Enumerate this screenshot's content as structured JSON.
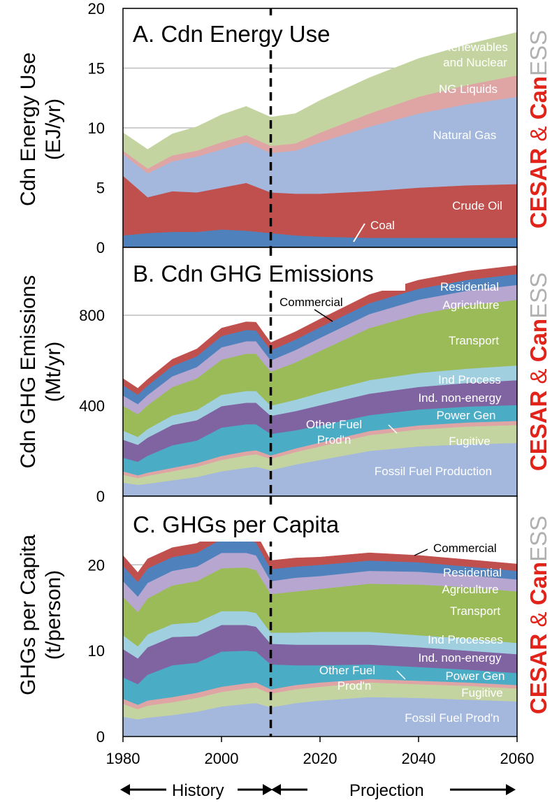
{
  "colors": {
    "coal": "#4f81bd",
    "crude": "#c0504d",
    "natgas": "#a3b8dc",
    "ngl": "#dfa5a4",
    "renew": "#c4d4a0",
    "ffprod": "#a3b8dc",
    "fugitive": "#c4d4a0",
    "otherfuel": "#dfa5a4",
    "powergen": "#4bacc6",
    "indnon": "#8064a2",
    "indproc": "#a0d0e0",
    "transport": "#9bbb59",
    "agri": "#b7a6cf",
    "resid": "#4f81bd",
    "comm": "#c0504d",
    "logo_red": "#e2231a",
    "logo_grey": "#b0b0b0"
  },
  "logo": {
    "cesar": "CESAR",
    "amp": "&",
    "can": "Can",
    "ess": "ESS"
  },
  "footer": {
    "history": "History",
    "projection": "Projection"
  },
  "chart_data": [
    {
      "type": "area",
      "title": "A. Cdn Energy Use",
      "ylabel_line1": "Cdn Energy Use",
      "ylabel_line2": "(EJ/yr)",
      "ylim": [
        0,
        20
      ],
      "yticks": [
        0,
        5,
        10,
        15,
        20
      ],
      "grid": true,
      "x": [
        1980,
        1985,
        1990,
        1995,
        2000,
        2005,
        2010,
        2015,
        2020,
        2030,
        2040,
        2050,
        2060
      ],
      "series": [
        {
          "name": "Coal",
          "key": "coal",
          "values": [
            1.0,
            1.2,
            1.3,
            1.3,
            1.5,
            1.4,
            1.2,
            1.0,
            0.9,
            0.8,
            0.8,
            0.8,
            0.8
          ]
        },
        {
          "name": "Crude Oil",
          "key": "crude",
          "values": [
            5.0,
            3.0,
            3.4,
            3.3,
            3.5,
            4.0,
            3.4,
            3.5,
            3.6,
            3.9,
            4.2,
            4.4,
            4.5
          ]
        },
        {
          "name": "Natural Gas",
          "key": "natgas",
          "values": [
            1.8,
            2.0,
            2.5,
            3.0,
            3.2,
            3.4,
            3.3,
            3.6,
            4.3,
            5.4,
            6.2,
            6.8,
            7.3
          ]
        },
        {
          "name": "NG Liquids",
          "key": "ngl",
          "values": [
            0.3,
            0.4,
            0.5,
            0.5,
            0.6,
            0.6,
            0.6,
            0.6,
            0.8,
            1.1,
            1.4,
            1.6,
            1.8
          ]
        },
        {
          "name": "Renewables and Nuclear",
          "key": "renew",
          "values": [
            1.5,
            1.6,
            1.8,
            2.0,
            2.3,
            2.4,
            2.4,
            2.5,
            2.7,
            3.0,
            3.2,
            3.4,
            3.6
          ]
        }
      ],
      "labels": [
        "Renewables",
        "and Nuclear",
        "NG Liquids",
        "Natural Gas",
        "Crude Oil",
        "Coal"
      ]
    },
    {
      "type": "area",
      "title": "B. Cdn GHG Emissions",
      "ylabel_line1": "Cdn GHG Emissions",
      "ylabel_line2": "(Mt/yr)",
      "ylim": [
        0,
        1100
      ],
      "yticks": [
        0,
        400,
        800
      ],
      "grid": true,
      "x": [
        1980,
        1983,
        1985,
        1990,
        1995,
        2000,
        2005,
        2007,
        2010,
        2015,
        2020,
        2030,
        2040,
        2050,
        2060
      ],
      "series": [
        {
          "name": "Fossil Fuel Production",
          "key": "ffprod",
          "values": [
            60,
            50,
            55,
            70,
            85,
            110,
            125,
            130,
            115,
            140,
            160,
            200,
            220,
            230,
            235
          ]
        },
        {
          "name": "Fugitive",
          "key": "fugitive",
          "values": [
            35,
            30,
            35,
            40,
            45,
            50,
            55,
            55,
            50,
            55,
            60,
            70,
            75,
            78,
            80
          ]
        },
        {
          "name": "Other Fuel Prod'n",
          "key": "otherfuel",
          "values": [
            15,
            12,
            14,
            15,
            16,
            18,
            18,
            18,
            15,
            16,
            17,
            18,
            18,
            18,
            18
          ]
        },
        {
          "name": "Power Gen",
          "key": "powergen",
          "values": [
            60,
            60,
            75,
            100,
            100,
            125,
            120,
            115,
            95,
            80,
            75,
            70,
            70,
            70,
            70
          ]
        },
        {
          "name": "Ind. non-energy",
          "key": "indnon",
          "values": [
            80,
            75,
            80,
            90,
            90,
            95,
            95,
            95,
            80,
            85,
            90,
            95,
            100,
            105,
            110
          ]
        },
        {
          "name": "Ind Process",
          "key": "indproc",
          "values": [
            40,
            35,
            38,
            42,
            45,
            50,
            52,
            52,
            45,
            50,
            55,
            60,
            62,
            63,
            65
          ]
        },
        {
          "name": "Transport",
          "key": "transport",
          "values": [
            110,
            100,
            105,
            125,
            140,
            155,
            165,
            165,
            150,
            165,
            185,
            230,
            260,
            280,
            290
          ]
        },
        {
          "name": "Agriculture",
          "key": "agri",
          "values": [
            45,
            45,
            45,
            48,
            50,
            55,
            55,
            55,
            50,
            55,
            58,
            62,
            64,
            65,
            66
          ]
        },
        {
          "name": "Residential",
          "key": "resid",
          "values": [
            45,
            42,
            42,
            45,
            48,
            50,
            50,
            48,
            45,
            46,
            47,
            48,
            48,
            48,
            48
          ]
        },
        {
          "name": "Commercial",
          "key": "comm",
          "values": [
            30,
            28,
            28,
            30,
            32,
            35,
            36,
            36,
            34,
            35,
            36,
            38,
            38,
            38,
            38
          ]
        }
      ],
      "labels": [
        "Residential",
        "Agriculture",
        "Commercial",
        "Transport",
        "Ind Process",
        "Ind. non-energy",
        "Power Gen",
        "Other Fuel",
        "Prod'n",
        "Fugitive",
        "Fossil Fuel Production"
      ]
    },
    {
      "type": "area",
      "title": "C.  GHGs per Capita",
      "ylabel_line1": "GHGs per Capita",
      "ylabel_line2": "(t/person)",
      "ylim": [
        0,
        28
      ],
      "yticks": [
        0,
        10,
        20
      ],
      "grid": true,
      "x": [
        1980,
        1983,
        1985,
        1990,
        1995,
        2000,
        2005,
        2007,
        2010,
        2015,
        2020,
        2030,
        2040,
        2050,
        2060
      ],
      "series": [
        {
          "name": "Fossil Fuel Prod'n",
          "key": "ffprod",
          "values": [
            2.3,
            2.0,
            2.2,
            2.5,
            2.9,
            3.5,
            3.8,
            3.9,
            3.4,
            3.9,
            4.2,
            4.6,
            4.5,
            4.3,
            4.1
          ]
        },
        {
          "name": "Fugitive",
          "key": "fugitive",
          "values": [
            1.5,
            1.2,
            1.4,
            1.5,
            1.6,
            1.7,
            1.8,
            1.8,
            1.6,
            1.6,
            1.6,
            1.7,
            1.6,
            1.6,
            1.5
          ]
        },
        {
          "name": "Other Fuel Prod'n",
          "key": "otherfuel",
          "values": [
            0.6,
            0.5,
            0.6,
            0.6,
            0.6,
            0.6,
            0.6,
            0.6,
            0.5,
            0.5,
            0.5,
            0.4,
            0.4,
            0.4,
            0.4
          ]
        },
        {
          "name": "Power Gen",
          "key": "powergen",
          "values": [
            2.5,
            2.4,
            3.0,
            3.7,
            3.5,
            4.1,
            3.8,
            3.6,
            2.9,
            2.3,
            2.0,
            1.7,
            1.6,
            1.5,
            1.4
          ]
        },
        {
          "name": "Ind. non-energy",
          "key": "indnon",
          "values": [
            3.3,
            3.0,
            3.2,
            3.3,
            3.1,
            3.1,
            3.0,
            2.9,
            2.4,
            2.4,
            2.4,
            2.3,
            2.3,
            2.2,
            2.2
          ]
        },
        {
          "name": "Ind Processes",
          "key": "indproc",
          "values": [
            1.6,
            1.4,
            1.5,
            1.5,
            1.6,
            1.6,
            1.6,
            1.6,
            1.3,
            1.4,
            1.5,
            1.5,
            1.4,
            1.4,
            1.3
          ]
        },
        {
          "name": "Transport",
          "key": "transport",
          "values": [
            4.5,
            4.0,
            4.2,
            4.5,
            4.8,
            5.0,
            5.1,
            5.0,
            4.5,
            4.8,
            5.0,
            5.6,
            5.9,
            6.0,
            6.0
          ]
        },
        {
          "name": "Agriculture",
          "key": "agri",
          "values": [
            1.8,
            1.8,
            1.8,
            1.7,
            1.7,
            1.8,
            1.7,
            1.7,
            1.5,
            1.6,
            1.5,
            1.5,
            1.5,
            1.4,
            1.4
          ]
        },
        {
          "name": "Residential",
          "key": "resid",
          "values": [
            1.8,
            1.7,
            1.7,
            1.6,
            1.6,
            1.6,
            1.6,
            1.5,
            1.4,
            1.3,
            1.3,
            1.2,
            1.1,
            1.0,
            1.0
          ]
        },
        {
          "name": "Commercial",
          "key": "comm",
          "values": [
            1.2,
            1.1,
            1.1,
            1.1,
            1.1,
            1.1,
            1.1,
            1.1,
            1.0,
            1.0,
            0.9,
            0.9,
            0.8,
            0.8,
            0.8
          ]
        }
      ],
      "labels": [
        "Commercial",
        "Residential",
        "Agriculture",
        "Transport",
        "Ind Processes",
        "Ind. non-energy",
        "Other Fuel",
        "Power Gen",
        "Prod'n",
        "Fugitive",
        "Fossil Fuel Prod'n"
      ]
    }
  ],
  "xaxis": {
    "ticks": [
      1980,
      2000,
      2020,
      2040,
      2060
    ],
    "xlim": [
      1980,
      2060
    ],
    "divider": 2010
  }
}
